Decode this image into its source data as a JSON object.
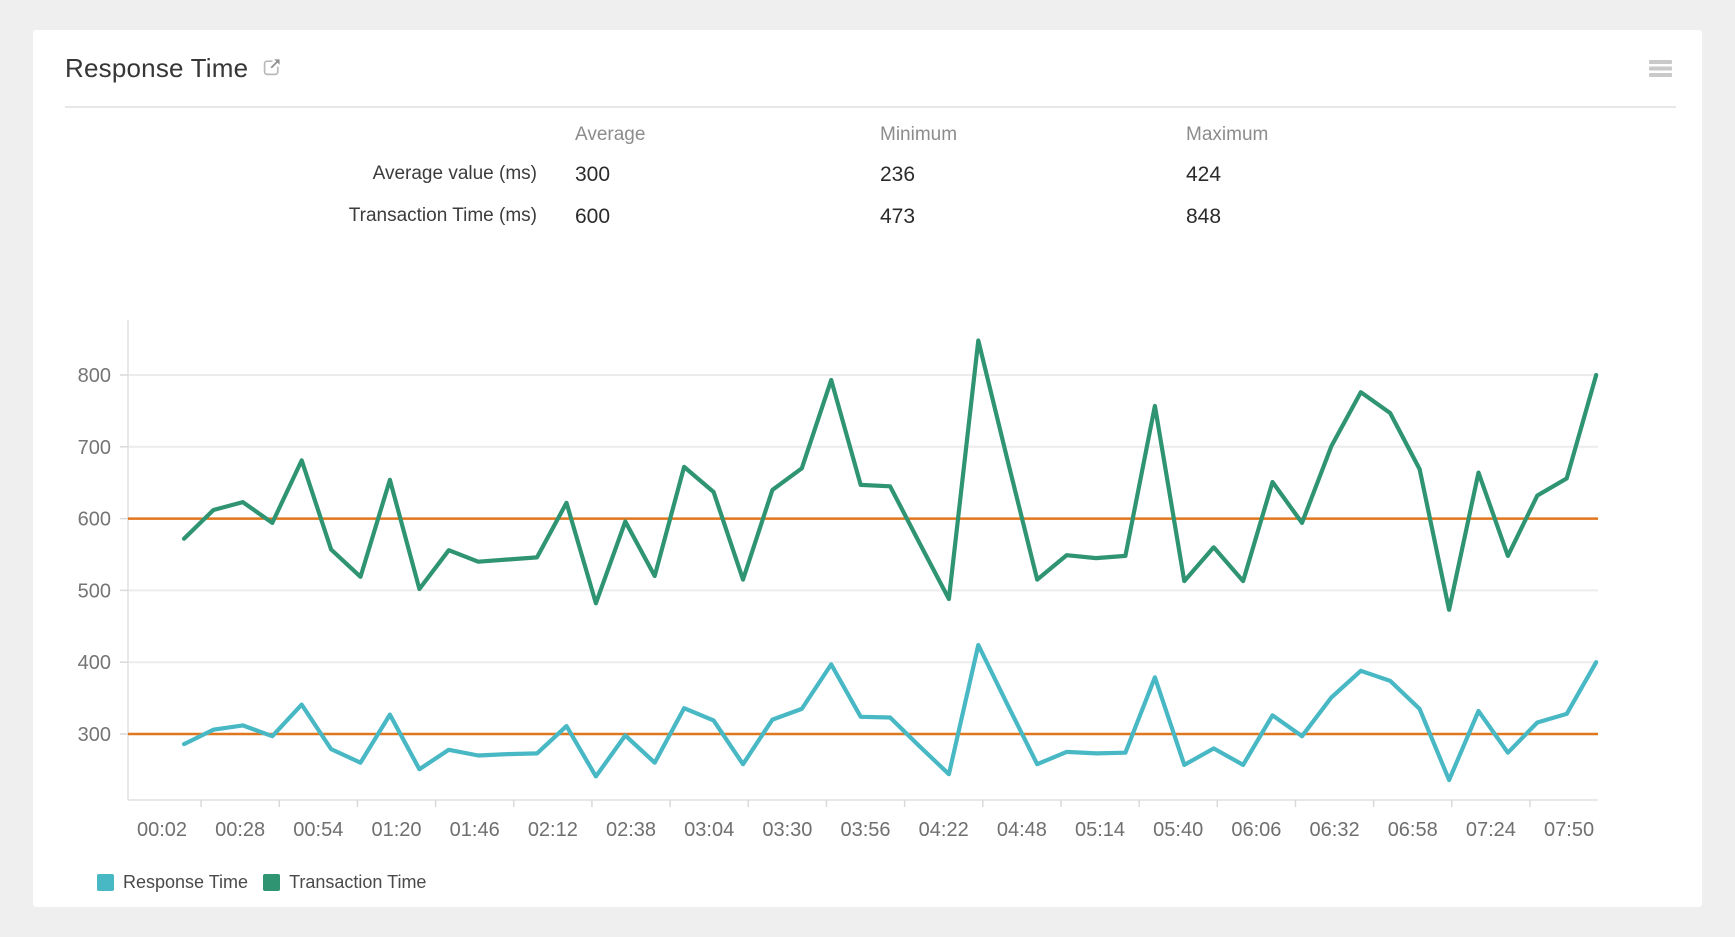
{
  "card": {
    "title": "Response Time"
  },
  "stats": {
    "columns": [
      "Average",
      "Minimum",
      "Maximum"
    ],
    "rows": [
      {
        "label": "Average value (ms)",
        "average": "300",
        "minimum": "236",
        "maximum": "424"
      },
      {
        "label": "Transaction Time (ms)",
        "average": "600",
        "minimum": "473",
        "maximum": "848"
      }
    ]
  },
  "chart_data": {
    "type": "line",
    "title": "Response Time",
    "xlabel": "",
    "ylabel": "",
    "ylim": [
      210,
      875
    ],
    "grid": true,
    "legend_position": "bottom-left",
    "y_ticks": [
      300,
      400,
      500,
      600,
      700,
      800
    ],
    "x_tick_labels": [
      "00:02",
      "00:28",
      "00:54",
      "01:20",
      "01:46",
      "02:12",
      "02:38",
      "03:04",
      "03:30",
      "03:56",
      "04:22",
      "04:48",
      "05:14",
      "05:40",
      "06:06",
      "06:32",
      "06:58",
      "07:24",
      "07:50"
    ],
    "threshold_lines": [
      {
        "value": 600,
        "color": "#e0761d",
        "for": "Transaction Time average"
      },
      {
        "value": 300,
        "color": "#e0761d",
        "for": "Response Time average"
      }
    ],
    "series": [
      {
        "name": "Response Time",
        "color": "#48b8c4",
        "values": [
          286,
          306,
          312,
          297,
          341,
          279,
          260,
          327,
          251,
          278,
          270,
          272,
          273,
          311,
          241,
          298,
          260,
          336,
          319,
          258,
          320,
          335,
          397,
          324,
          323,
          283,
          244,
          424,
          340,
          258,
          275,
          273,
          274,
          379,
          257,
          280,
          257,
          326,
          297,
          351,
          388,
          374,
          335,
          236,
          332,
          274,
          316,
          328,
          400
        ]
      },
      {
        "name": "Transaction Time",
        "color": "#2f9472",
        "values": [
          572,
          612,
          623,
          594,
          681,
          557,
          519,
          654,
          502,
          556,
          540,
          543,
          546,
          622,
          482,
          596,
          520,
          672,
          637,
          515,
          640,
          670,
          793,
          647,
          645,
          566,
          488,
          848,
          680,
          515,
          549,
          545,
          548,
          757,
          513,
          560,
          513,
          651,
          594,
          701,
          776,
          747,
          669,
          473,
          664,
          548,
          632,
          656,
          800
        ]
      }
    ],
    "colors": {
      "grid_line": "#ececec",
      "axis_line": "#e0e0e0",
      "tick_mark": "#d9d9d9",
      "tick_label": "#757575",
      "threshold": "#e0761d"
    }
  }
}
